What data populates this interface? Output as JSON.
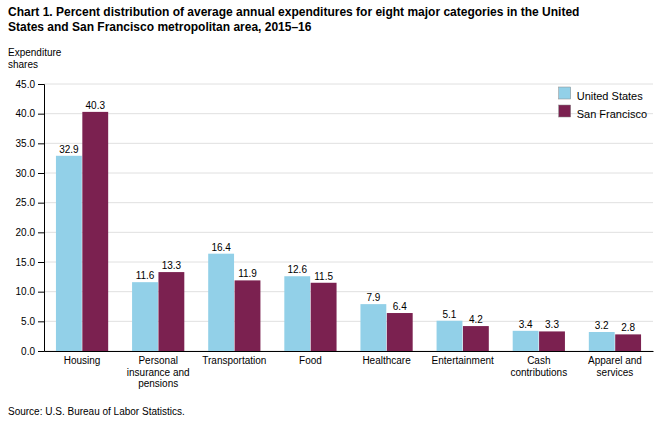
{
  "chart_data": {
    "type": "bar",
    "title": [
      "Chart 1. Percent distribution  of average annual expenditures for eight major categories in the United",
      " States and San Francisco  metropolitan area, 2015–16"
    ],
    "y_label": [
      "Expenditure",
      "shares"
    ],
    "source": "Source: U.S. Bureau of Labor Statistics.",
    "categories": [
      "Housing",
      "Personal\ninsurance and\npensions",
      "Transportation",
      "Food",
      "Healthcare",
      "Entertainment",
      "Cash\ncontributions",
      "Apparel and\nservices"
    ],
    "series": [
      {
        "name": "United States",
        "color": "#92D0E8",
        "values": [
          32.9,
          11.6,
          16.4,
          12.6,
          7.9,
          5.1,
          3.4,
          3.2
        ]
      },
      {
        "name": "San Francisco",
        "color": "#7B2150",
        "values": [
          40.3,
          13.3,
          11.9,
          11.5,
          6.4,
          4.2,
          3.3,
          2.8
        ]
      }
    ],
    "ylim": [
      0,
      45
    ],
    "yticks": [
      {
        "value": 0.0,
        "label": "0.0"
      },
      {
        "value": 5.0,
        "label": "5.0"
      },
      {
        "value": 10.0,
        "label": "10.0"
      },
      {
        "value": 15.0,
        "label": "15.0"
      },
      {
        "value": 20.0,
        "label": "20.0"
      },
      {
        "value": 25.0,
        "label": "25.0"
      },
      {
        "value": 30.0,
        "label": "30.0"
      },
      {
        "value": 35.0,
        "label": "35.0"
      },
      {
        "value": 40.0,
        "label": "40.0"
      },
      {
        "value": 45.0,
        "label": "45.0"
      }
    ],
    "grid": true,
    "legend": "upper right",
    "data_labels": true
  }
}
